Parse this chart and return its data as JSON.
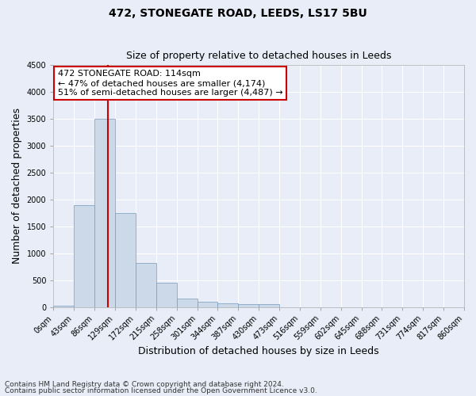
{
  "title": "472, STONEGATE ROAD, LEEDS, LS17 5BU",
  "subtitle": "Size of property relative to detached houses in Leeds",
  "xlabel": "Distribution of detached houses by size in Leeds",
  "ylabel": "Number of detached properties",
  "bin_labels": [
    "0sqm",
    "43sqm",
    "86sqm",
    "129sqm",
    "172sqm",
    "215sqm",
    "258sqm",
    "301sqm",
    "344sqm",
    "387sqm",
    "430sqm",
    "473sqm",
    "516sqm",
    "559sqm",
    "602sqm",
    "645sqm",
    "688sqm",
    "731sqm",
    "774sqm",
    "817sqm",
    "860sqm"
  ],
  "bar_values": [
    20,
    1900,
    3500,
    1750,
    820,
    450,
    160,
    90,
    65,
    55,
    50,
    0,
    0,
    0,
    0,
    0,
    0,
    0,
    0,
    0
  ],
  "bar_color": "#ccd9e8",
  "bar_edge_color": "#7799bb",
  "property_line_x": 114,
  "property_line_color": "#cc0000",
  "ylim": [
    0,
    4500
  ],
  "yticks": [
    0,
    500,
    1000,
    1500,
    2000,
    2500,
    3000,
    3500,
    4000,
    4500
  ],
  "annotation_text": "472 STONEGATE ROAD: 114sqm\n← 47% of detached houses are smaller (4,174)\n51% of semi-detached houses are larger (4,487) →",
  "annotation_box_color": "#ffffff",
  "annotation_box_edge_color": "#cc0000",
  "footnote1": "Contains HM Land Registry data © Crown copyright and database right 2024.",
  "footnote2": "Contains public sector information licensed under the Open Government Licence v3.0.",
  "background_color": "#e8edf8",
  "grid_color": "#ffffff",
  "title_fontsize": 10,
  "subtitle_fontsize": 9,
  "axis_label_fontsize": 9,
  "tick_fontsize": 7,
  "annotation_fontsize": 8
}
